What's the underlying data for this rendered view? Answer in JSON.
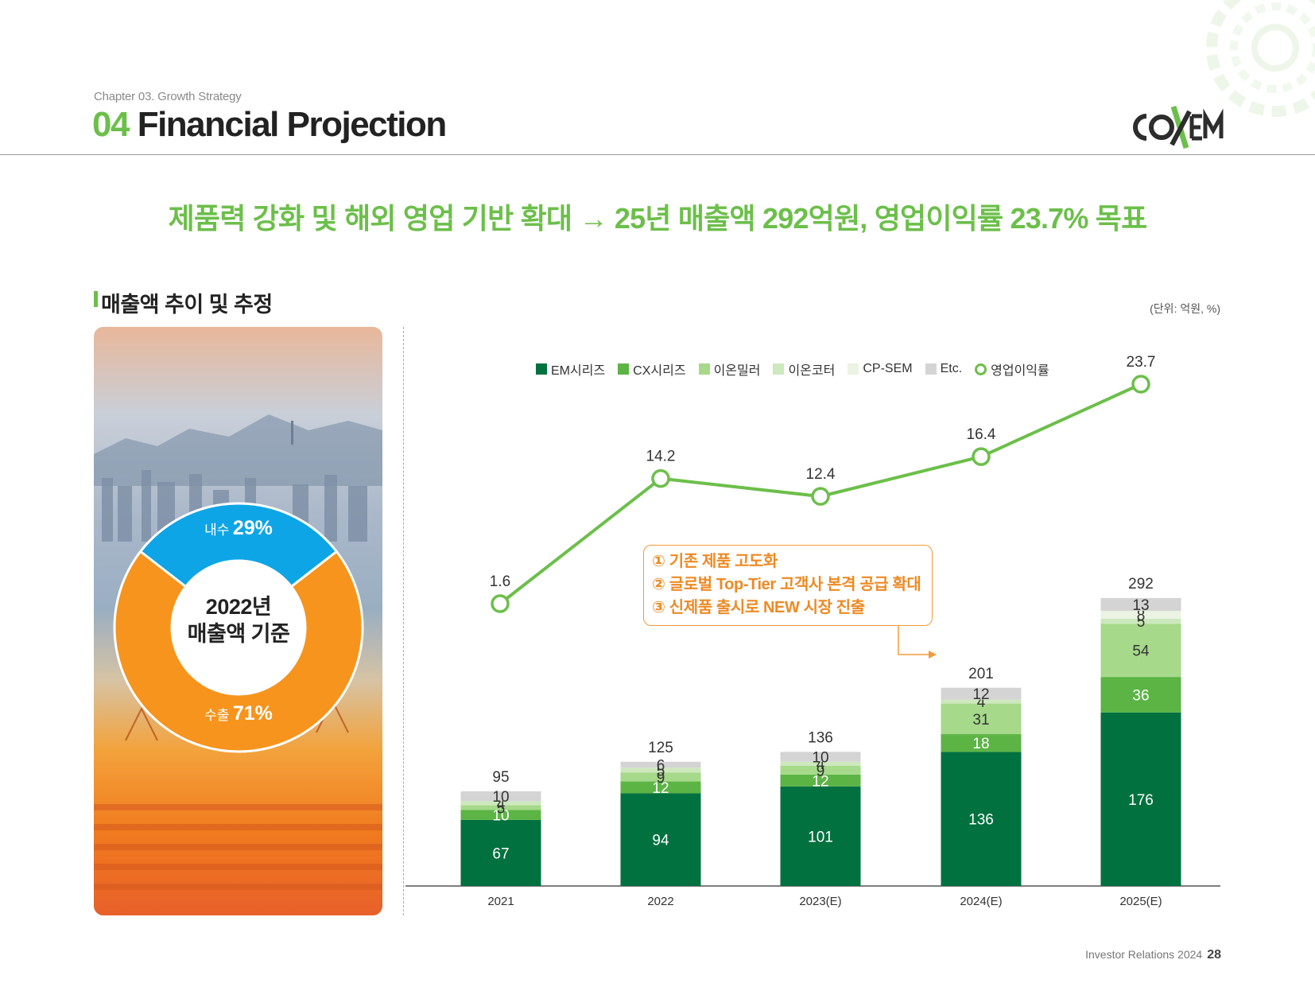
{
  "header": {
    "chapter": "Chapter 03. Growth Strategy",
    "section_number": "04",
    "title": "Financial Projection",
    "logo_text": "COXEM"
  },
  "headline": "제품력 강화 및 해외 영업 기반 확대 → 25년 매출액 292억원, 영업이익률 23.7% 목표",
  "section": {
    "title": "매출액 추이 및 추정",
    "unit_note": "(단위: 억원, %)"
  },
  "donut": {
    "center_line1": "2022년",
    "center_line2": "매출액 기준",
    "segments": [
      {
        "name": "내수",
        "percent": 29,
        "percent_label": "29%",
        "color": "#0ea5e6"
      },
      {
        "name": "수출",
        "percent": 71,
        "percent_label": "71%",
        "color": "#f7941d"
      }
    ]
  },
  "callout": {
    "lines": [
      "① 기존 제품 고도화",
      "② 글로벌 Top-Tier 고객사 본격 공급 확대",
      "③ 신제품 출시로 NEW 시장 진출"
    ],
    "color": "#ee8a24"
  },
  "chart_data": {
    "type": "bar",
    "stacked": true,
    "categories": [
      "2021",
      "2022",
      "2023(E)",
      "2024(E)",
      "2025(E)"
    ],
    "series": [
      {
        "name": "EM시리즈",
        "color": "#00713f",
        "values": [
          67,
          94,
          101,
          136,
          176
        ]
      },
      {
        "name": "CX시리즈",
        "color": "#5cb445",
        "values": [
          10,
          12,
          12,
          18,
          36
        ]
      },
      {
        "name": "이온밀러",
        "color": "#a6d98a",
        "values": [
          5,
          9,
          9,
          31,
          54
        ]
      },
      {
        "name": "이온코터",
        "color": "#cde8bd",
        "values": [
          4,
          5,
          4,
          4,
          5
        ]
      },
      {
        "name": "CP-SEM",
        "color": "#ebf4e3",
        "values": [
          0,
          0,
          0,
          0,
          8
        ]
      },
      {
        "name": "Etc.",
        "color": "#d4d4d4",
        "values": [
          10,
          6,
          10,
          12,
          13
        ]
      }
    ],
    "totals": [
      95,
      125,
      136,
      201,
      292
    ],
    "line_series": {
      "name": "영업이익률",
      "color": "#6cbf4a",
      "values": [
        1.6,
        14.2,
        12.4,
        16.4,
        23.7
      ]
    },
    "legend_position": "top",
    "grid": false
  },
  "footer": {
    "text": "Investor Relations 2024",
    "page": "28"
  }
}
